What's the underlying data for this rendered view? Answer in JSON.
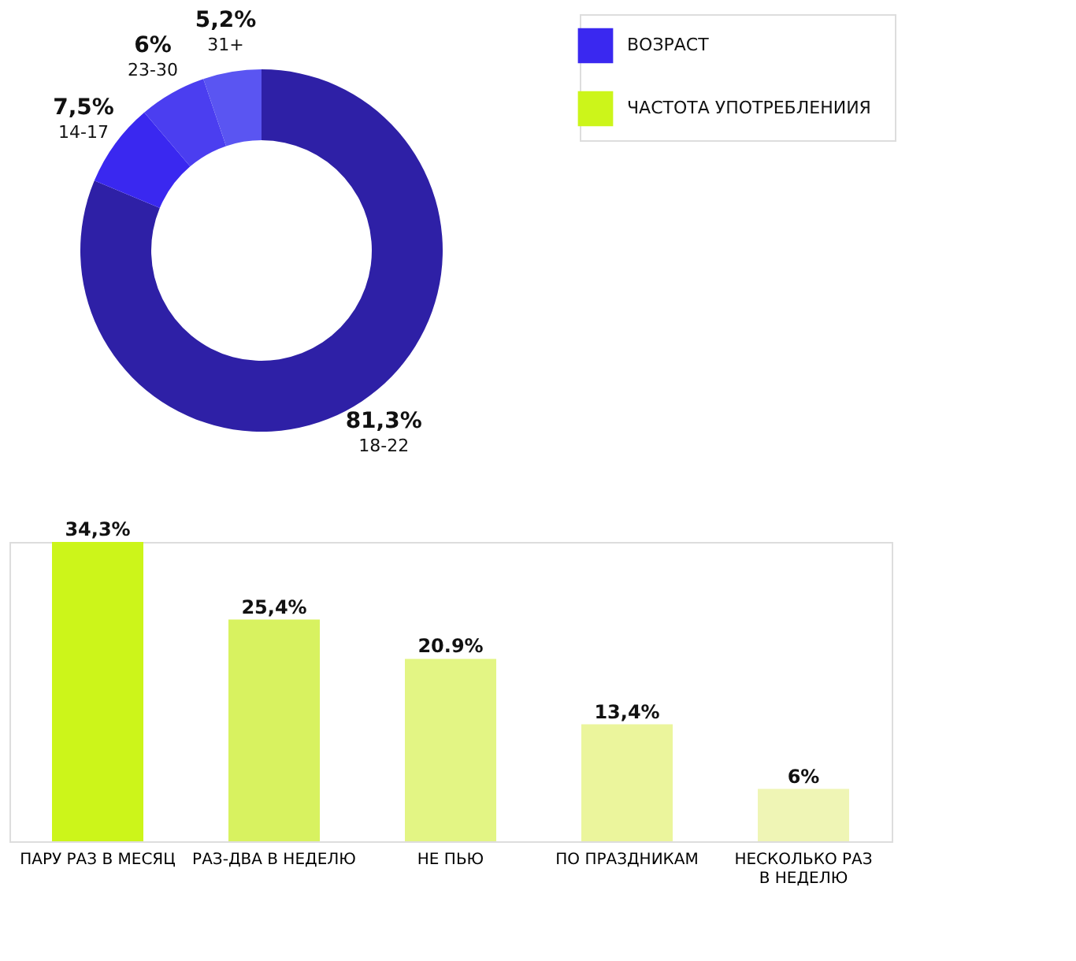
{
  "chart_data": [
    {
      "type": "donut",
      "legend": "top right",
      "categories": [
        "18-22",
        "14-17",
        "23-30",
        "31+"
      ],
      "colors": [
        "#2e20a6",
        "#3a28f0",
        "#4b3ef0",
        "#5a55f2"
      ],
      "value_labels": [
        "81,3%",
        "7,5%",
        "6%",
        "5,2%"
      ],
      "series": [
        {
          "name": "ВОЗРАСТ",
          "color": "#3a28f0",
          "values": [
            81.3,
            7.5,
            6,
            5.2
          ]
        }
      ]
    },
    {
      "type": "bar",
      "legend": "top",
      "categories": [
        "ПАРУ РАЗ В МЕСЯЦ",
        "РАЗ-ДВА В НЕДЕЛЮ",
        "НЕ ПЬЮ",
        "ПО ПРАЗДНИКАМ",
        "НЕСКОЛЬКО РАЗ В НЕДЕЛЮ"
      ],
      "series": [
        {
          "name": "ЧАСТОТА УПОТРЕБЛЕНИИЯ",
          "color": "#ccf51a",
          "colors": [
            "#ccf51a",
            "#d8f260",
            "#e3f584",
            "#ebf59c",
            "#eff5b5"
          ],
          "values": [
            34.3,
            25.4,
            20.9,
            13.4,
            6
          ],
          "value_labels": [
            "34,3%",
            "25,4%",
            "20.9%",
            "13,4%",
            "6%"
          ]
        }
      ]
    }
  ]
}
